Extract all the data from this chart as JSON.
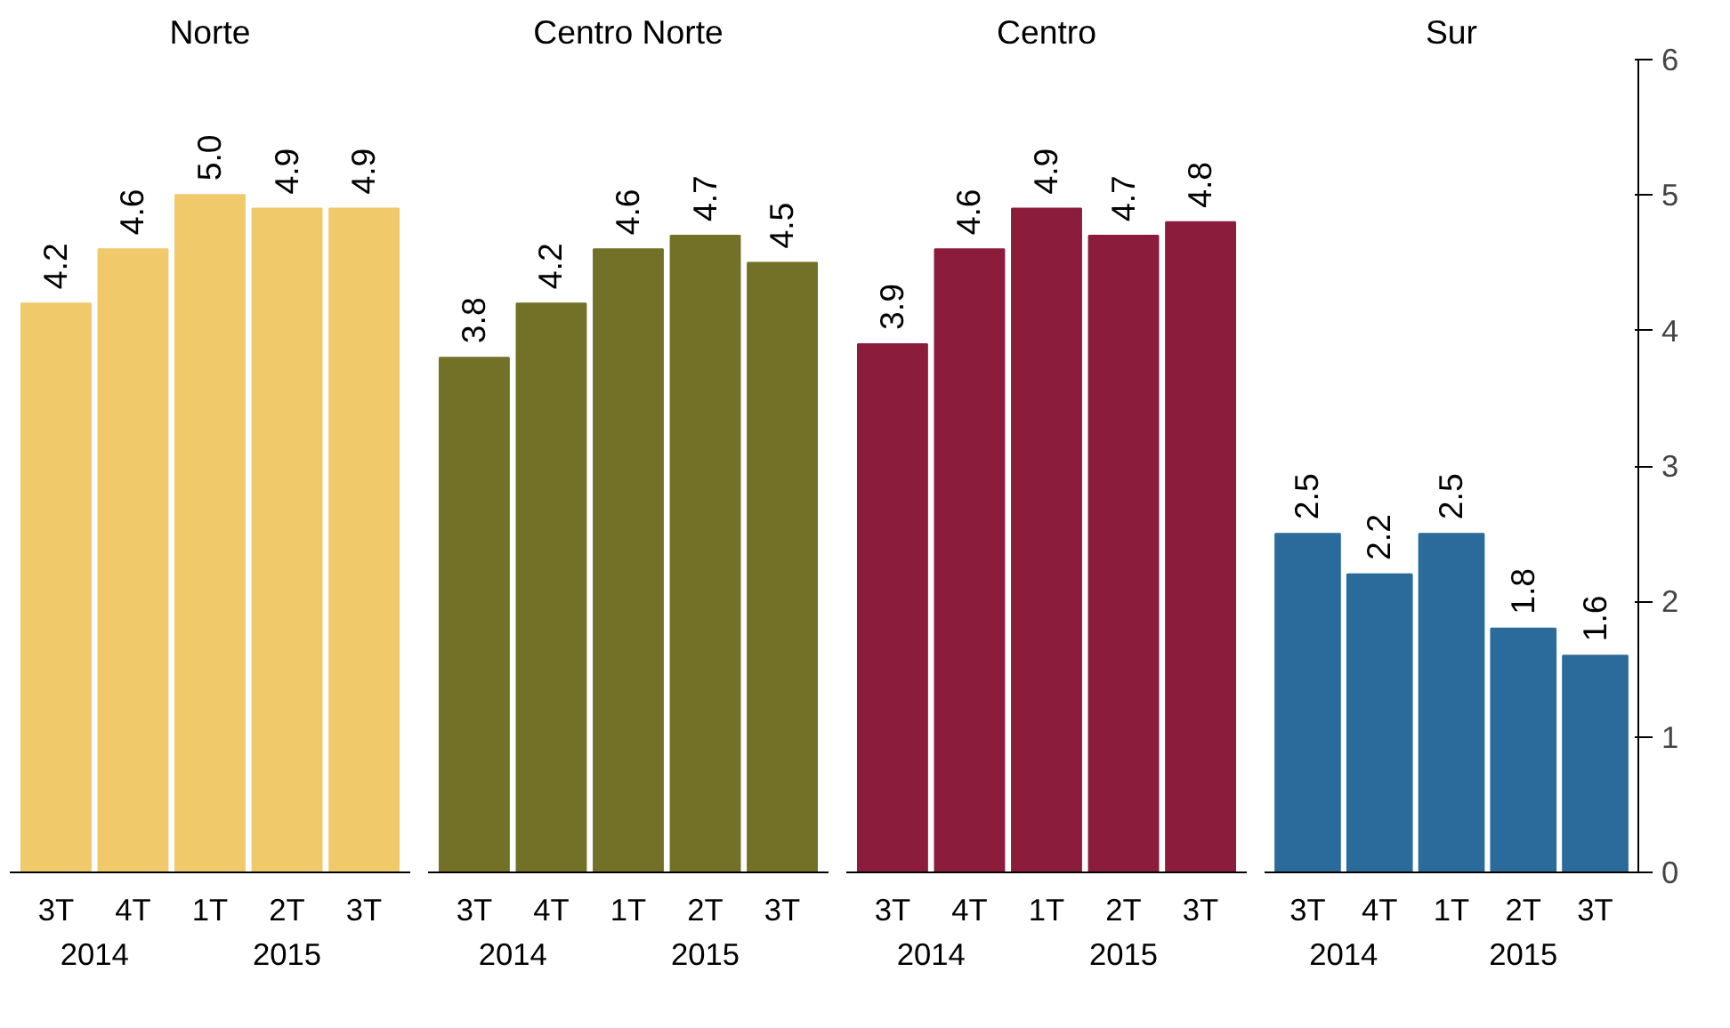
{
  "chart_data": [
    {
      "type": "bar",
      "title": "Norte",
      "categories": [
        "3T",
        "4T",
        "1T",
        "2T",
        "3T"
      ],
      "values": [
        4.2,
        4.6,
        5.0,
        4.9,
        4.9
      ],
      "value_labels": [
        "4.2",
        "4.6",
        "5.0",
        "4.9",
        "4.9"
      ],
      "color": "#f0c96b",
      "ylim": [
        0,
        6
      ],
      "yticks": [
        0,
        1,
        2,
        3,
        4,
        5,
        6
      ],
      "data_labels": true,
      "tick_labels": "x",
      "annotations": [
        "2014",
        "2015"
      ]
    },
    {
      "type": "bar",
      "title": "Centro Norte",
      "categories": [
        "3T",
        "4T",
        "1T",
        "2T",
        "3T"
      ],
      "values": [
        3.8,
        4.2,
        4.6,
        4.7,
        4.5
      ],
      "color": "#737027",
      "ylim": [
        0,
        6
      ],
      "yticks": [
        0,
        1,
        2,
        3,
        4,
        5,
        6
      ],
      "data_labels": true,
      "tick_labels": "x",
      "annotations": [
        "2014",
        "2015"
      ]
    },
    {
      "type": "bar",
      "title": "Centro",
      "categories": [
        "3T",
        "4T",
        "1T",
        "2T",
        "3T"
      ],
      "values": [
        3.9,
        4.6,
        4.9,
        4.7,
        4.8
      ],
      "color": "#8c1c3c",
      "ylim": [
        0,
        6
      ],
      "yticks": [
        0,
        1,
        2,
        3,
        4,
        5,
        6
      ],
      "data_labels": true,
      "tick_labels": "x",
      "annotations": [
        "2014",
        "2015"
      ]
    },
    {
      "type": "bar",
      "title": "Sur",
      "categories": [
        "3T",
        "4T",
        "1T",
        "2T",
        "3T"
      ],
      "values": [
        2.5,
        2.2,
        2.5,
        1.8,
        1.6
      ],
      "color": "#2b6b9b",
      "ylim": [
        0,
        6
      ],
      "yticks": [
        0,
        1,
        2,
        3,
        4,
        5,
        6
      ],
      "data_labels": true,
      "annotations": [
        "2014",
        "2015"
      ]
    }
  ]
}
